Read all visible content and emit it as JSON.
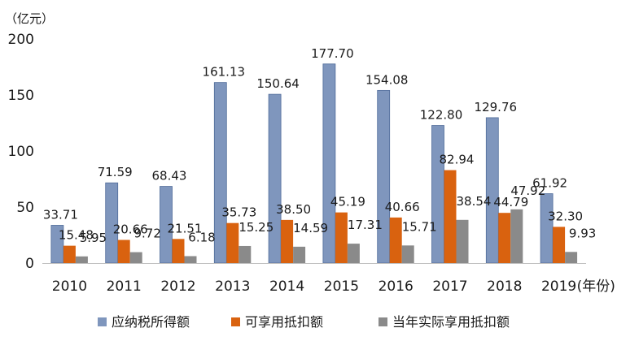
{
  "chart_data": {
    "type": "bar",
    "unit_label": "（亿元）",
    "x_suffix": "(年份)",
    "categories": [
      "2010",
      "2011",
      "2012",
      "2013",
      "2014",
      "2015",
      "2016",
      "2017",
      "2018",
      "2019"
    ],
    "ylim": [
      0,
      200
    ],
    "yticks": [
      "0",
      "50",
      "100",
      "150",
      "200"
    ],
    "grid": false,
    "legend_position": "bottom",
    "series": [
      {
        "name": "应纳税所得额",
        "color": "#7f96bd",
        "values": [
          33.71,
          71.59,
          68.43,
          161.13,
          150.64,
          177.7,
          154.08,
          122.8,
          129.76,
          61.92
        ],
        "labels": [
          "33.71",
          "71.59",
          "68.43",
          "161.13",
          "150.64",
          "177.70",
          "154.08",
          "122.80",
          "129.76",
          "61.92"
        ]
      },
      {
        "name": "可享用抵扣额",
        "color": "#d9620f",
        "values": [
          15.48,
          20.66,
          21.51,
          35.73,
          38.5,
          45.19,
          40.66,
          82.94,
          44.79,
          32.3
        ],
        "labels": [
          "15.48",
          "20.66",
          "21.51",
          "35.73",
          "38.50",
          "45.19",
          "40.66",
          "82.94",
          "44.79",
          "32.30"
        ]
      },
      {
        "name": "当年实际享用抵扣额",
        "color": "#8a8a8a",
        "values": [
          5.95,
          9.72,
          6.18,
          15.25,
          14.59,
          17.31,
          15.71,
          38.54,
          47.92,
          9.93
        ],
        "labels": [
          "5.95",
          "9.72",
          "6.18",
          "15.25",
          "14.59",
          "17.31",
          "15.71",
          "38.54",
          "47.92",
          "9.93"
        ]
      }
    ]
  }
}
